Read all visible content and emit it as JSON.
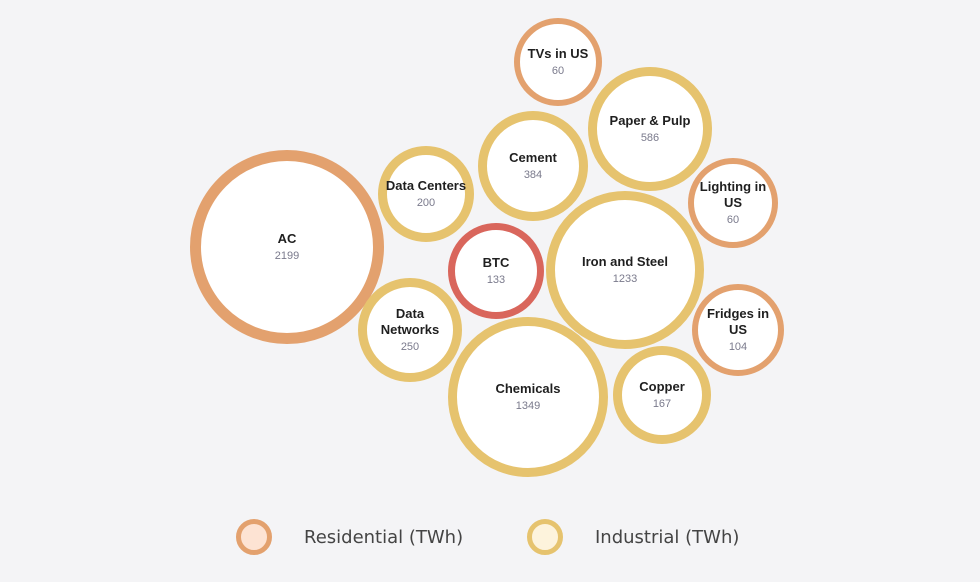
{
  "chart_data": {
    "type": "bubble",
    "unit": "TWh",
    "bubbles": [
      {
        "id": "tvs",
        "label": [
          "TVs in US"
        ],
        "value": 60,
        "category": "residential"
      },
      {
        "id": "paper",
        "label": [
          "Paper & Pulp"
        ],
        "value": 586,
        "category": "industrial"
      },
      {
        "id": "cement",
        "label": [
          "Cement"
        ],
        "value": 384,
        "category": "industrial"
      },
      {
        "id": "datacenters",
        "label": [
          "Data Centers"
        ],
        "value": 200,
        "category": "industrial"
      },
      {
        "id": "lighting",
        "label": [
          "Lighting in",
          "US"
        ],
        "value": 60,
        "category": "residential"
      },
      {
        "id": "ac",
        "label": [
          "AC"
        ],
        "value": 2199,
        "category": "residential"
      },
      {
        "id": "btc",
        "label": [
          "BTC"
        ],
        "value": 133,
        "category": "btc"
      },
      {
        "id": "ironsteel",
        "label": [
          "Iron and Steel"
        ],
        "value": 1233,
        "category": "industrial"
      },
      {
        "id": "datanetworks",
        "label": [
          "Data",
          "Networks"
        ],
        "value": 250,
        "category": "industrial"
      },
      {
        "id": "fridges",
        "label": [
          "Fridges in",
          "US"
        ],
        "value": 104,
        "category": "residential"
      },
      {
        "id": "chemicals",
        "label": [
          "Chemicals"
        ],
        "value": 1349,
        "category": "industrial"
      },
      {
        "id": "copper",
        "label": [
          "Copper"
        ],
        "value": 167,
        "category": "industrial"
      }
    ],
    "colors": {
      "residential": "#e3a16e",
      "industrial": "#e6c36e",
      "btc": "#d9665c",
      "bubble_fill": "#ffffff"
    },
    "legend": [
      {
        "label": "Residential (TWh)",
        "border": "#e3a16e",
        "fill": "#fde3d3"
      },
      {
        "label": "Industrial (TWh)",
        "border": "#e6c36e",
        "fill": "#fdf3dc"
      }
    ]
  }
}
